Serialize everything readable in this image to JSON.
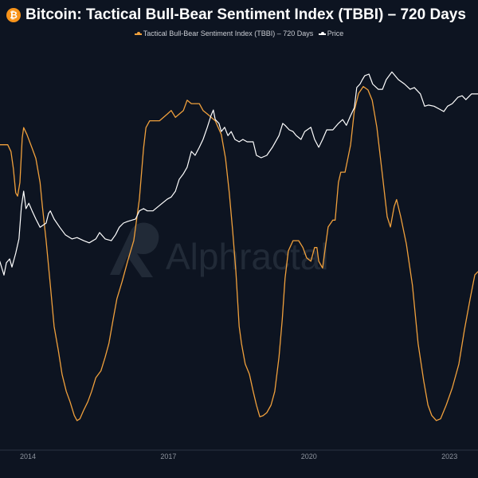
{
  "title": "Bitcoin: Tactical Bull-Bear Sentiment Index (TBBI) – 720 Days",
  "watermark": "Alphractal",
  "colors": {
    "background": "#0d1421",
    "tbbi": "#f0a03c",
    "price": "#ffffff",
    "brand": "#f7931a"
  },
  "chart_data": {
    "type": "line",
    "title": "Bitcoin: Tactical Bull-Bear Sentiment Index (TBBI) – 720 Days",
    "legend": "top-center",
    "grid": false,
    "x_ticks": [
      "2014",
      "2017",
      "2020",
      "2023"
    ],
    "xlim": [
      2013.4,
      2023.61
    ],
    "series": [
      {
        "name": "Tactical Bull-Bear Sentiment Index (TBBI) – 720 Days",
        "axis": "left (unlabeled, relative 0-100)",
        "color": "#f0a03c",
        "points": [
          [
            2013.4,
            81
          ],
          [
            2013.57,
            81
          ],
          [
            2013.64,
            79
          ],
          [
            2013.69,
            74
          ],
          [
            2013.74,
            67
          ],
          [
            2013.78,
            66
          ],
          [
            2013.83,
            70
          ],
          [
            2013.88,
            83
          ],
          [
            2013.91,
            86
          ],
          [
            2013.98,
            84
          ],
          [
            2014.09,
            80
          ],
          [
            2014.17,
            77
          ],
          [
            2014.26,
            70
          ],
          [
            2014.31,
            63
          ],
          [
            2014.39,
            53
          ],
          [
            2014.48,
            40
          ],
          [
            2014.56,
            28
          ],
          [
            2014.65,
            21
          ],
          [
            2014.73,
            14
          ],
          [
            2014.82,
            9
          ],
          [
            2014.9,
            6
          ],
          [
            2014.99,
            2
          ],
          [
            2015.05,
            0.5
          ],
          [
            2015.11,
            1
          ],
          [
            2015.19,
            3.5
          ],
          [
            2015.28,
            6
          ],
          [
            2015.36,
            9
          ],
          [
            2015.45,
            13
          ],
          [
            2015.56,
            15
          ],
          [
            2015.65,
            19
          ],
          [
            2015.73,
            23
          ],
          [
            2015.82,
            30
          ],
          [
            2015.9,
            36
          ],
          [
            2016.01,
            41
          ],
          [
            2016.13,
            47
          ],
          [
            2016.26,
            53
          ],
          [
            2016.38,
            65
          ],
          [
            2016.47,
            80
          ],
          [
            2016.52,
            86
          ],
          [
            2016.6,
            88
          ],
          [
            2016.81,
            88
          ],
          [
            2016.98,
            90
          ],
          [
            2017.06,
            91
          ],
          [
            2017.15,
            89
          ],
          [
            2017.32,
            91
          ],
          [
            2017.4,
            94
          ],
          [
            2017.49,
            93
          ],
          [
            2017.66,
            93
          ],
          [
            2017.74,
            91
          ],
          [
            2017.83,
            90
          ],
          [
            2018.0,
            88
          ],
          [
            2018.13,
            84
          ],
          [
            2018.22,
            77
          ],
          [
            2018.3,
            67
          ],
          [
            2018.37,
            56
          ],
          [
            2018.44,
            44
          ],
          [
            2018.51,
            28
          ],
          [
            2018.56,
            23
          ],
          [
            2018.64,
            17
          ],
          [
            2018.73,
            14
          ],
          [
            2018.81,
            9
          ],
          [
            2018.88,
            5
          ],
          [
            2018.95,
            1.6
          ],
          [
            2019.02,
            1.9
          ],
          [
            2019.1,
            2.8
          ],
          [
            2019.19,
            5
          ],
          [
            2019.27,
            9
          ],
          [
            2019.36,
            19
          ],
          [
            2019.43,
            30
          ],
          [
            2019.49,
            42
          ],
          [
            2019.56,
            50
          ],
          [
            2019.66,
            53
          ],
          [
            2019.78,
            53
          ],
          [
            2019.87,
            51
          ],
          [
            2019.95,
            48
          ],
          [
            2020.04,
            47
          ],
          [
            2020.12,
            51
          ],
          [
            2020.17,
            51
          ],
          [
            2020.21,
            47
          ],
          [
            2020.29,
            45
          ],
          [
            2020.33,
            49
          ],
          [
            2020.41,
            57
          ],
          [
            2020.51,
            59
          ],
          [
            2020.56,
            59
          ],
          [
            2020.63,
            70
          ],
          [
            2020.68,
            73
          ],
          [
            2020.77,
            73
          ],
          [
            2020.89,
            81
          ],
          [
            2020.97,
            91
          ],
          [
            2021.06,
            96
          ],
          [
            2021.11,
            97
          ],
          [
            2021.16,
            98
          ],
          [
            2021.26,
            97
          ],
          [
            2021.35,
            94
          ],
          [
            2021.45,
            86
          ],
          [
            2021.57,
            72
          ],
          [
            2021.67,
            60
          ],
          [
            2021.74,
            57
          ],
          [
            2021.82,
            63
          ],
          [
            2021.87,
            65
          ],
          [
            2021.96,
            60
          ],
          [
            2022.08,
            52
          ],
          [
            2022.21,
            40
          ],
          [
            2022.33,
            23
          ],
          [
            2022.45,
            12
          ],
          [
            2022.54,
            5
          ],
          [
            2022.62,
            2
          ],
          [
            2022.72,
            0.5
          ],
          [
            2022.81,
            1
          ],
          [
            2022.93,
            5
          ],
          [
            2023.06,
            10
          ],
          [
            2023.2,
            17
          ],
          [
            2023.32,
            27
          ],
          [
            2023.44,
            36
          ],
          [
            2023.54,
            43
          ],
          [
            2023.61,
            44
          ]
        ]
      },
      {
        "name": "Price",
        "axis": "right (unlabeled, log USD)",
        "scale": "log",
        "color": "#ffffff",
        "points": [
          [
            2013.4,
            85
          ],
          [
            2013.49,
            52
          ],
          [
            2013.54,
            80
          ],
          [
            2013.61,
            92
          ],
          [
            2013.66,
            69
          ],
          [
            2013.74,
            112
          ],
          [
            2013.81,
            186
          ],
          [
            2013.86,
            570
          ],
          [
            2013.91,
            1000
          ],
          [
            2013.96,
            540
          ],
          [
            2014.02,
            655
          ],
          [
            2014.09,
            500
          ],
          [
            2014.17,
            375
          ],
          [
            2014.26,
            280
          ],
          [
            2014.39,
            325
          ],
          [
            2014.44,
            455
          ],
          [
            2014.48,
            500
          ],
          [
            2014.56,
            375
          ],
          [
            2014.68,
            280
          ],
          [
            2014.8,
            215
          ],
          [
            2014.94,
            186
          ],
          [
            2015.05,
            195
          ],
          [
            2015.19,
            175
          ],
          [
            2015.31,
            162
          ],
          [
            2015.45,
            186
          ],
          [
            2015.53,
            233
          ],
          [
            2015.65,
            186
          ],
          [
            2015.78,
            175
          ],
          [
            2015.87,
            215
          ],
          [
            2015.95,
            280
          ],
          [
            2016.04,
            325
          ],
          [
            2016.13,
            345
          ],
          [
            2016.3,
            375
          ],
          [
            2016.38,
            500
          ],
          [
            2016.47,
            540
          ],
          [
            2016.55,
            500
          ],
          [
            2016.67,
            500
          ],
          [
            2016.81,
            605
          ],
          [
            2016.98,
            760
          ],
          [
            2017.06,
            815
          ],
          [
            2017.15,
            1000
          ],
          [
            2017.23,
            1515
          ],
          [
            2017.32,
            1850
          ],
          [
            2017.4,
            2330
          ],
          [
            2017.49,
            4070
          ],
          [
            2017.57,
            3540
          ],
          [
            2017.66,
            4700
          ],
          [
            2017.74,
            6200
          ],
          [
            2017.83,
            9500
          ],
          [
            2017.91,
            14400
          ],
          [
            2017.96,
            17500
          ],
          [
            2018.0,
            12500
          ],
          [
            2018.08,
            10900
          ],
          [
            2018.13,
            8200
          ],
          [
            2018.2,
            9500
          ],
          [
            2018.27,
            7100
          ],
          [
            2018.34,
            8200
          ],
          [
            2018.42,
            6200
          ],
          [
            2018.51,
            5700
          ],
          [
            2018.59,
            6200
          ],
          [
            2018.68,
            5700
          ],
          [
            2018.81,
            5700
          ],
          [
            2018.88,
            3540
          ],
          [
            2018.98,
            3250
          ],
          [
            2019.1,
            3540
          ],
          [
            2019.22,
            4700
          ],
          [
            2019.36,
            7100
          ],
          [
            2019.44,
            10900
          ],
          [
            2019.49,
            10200
          ],
          [
            2019.58,
            8700
          ],
          [
            2019.66,
            8200
          ],
          [
            2019.73,
            7100
          ],
          [
            2019.83,
            6200
          ],
          [
            2019.91,
            8200
          ],
          [
            2020.04,
            9500
          ],
          [
            2020.12,
            6200
          ],
          [
            2020.21,
            4700
          ],
          [
            2020.29,
            6200
          ],
          [
            2020.38,
            8700
          ],
          [
            2020.51,
            8700
          ],
          [
            2020.63,
            10900
          ],
          [
            2020.72,
            12500
          ],
          [
            2020.8,
            10200
          ],
          [
            2020.89,
            14400
          ],
          [
            2020.97,
            19000
          ],
          [
            2021.02,
            38600
          ],
          [
            2021.09,
            43700
          ],
          [
            2021.14,
            51000
          ],
          [
            2021.19,
            58500
          ],
          [
            2021.28,
            62000
          ],
          [
            2021.36,
            43700
          ],
          [
            2021.48,
            36300
          ],
          [
            2021.57,
            36300
          ],
          [
            2021.65,
            51000
          ],
          [
            2021.77,
            67000
          ],
          [
            2021.91,
            51000
          ],
          [
            2022.04,
            43700
          ],
          [
            2022.16,
            36300
          ],
          [
            2022.25,
            38600
          ],
          [
            2022.38,
            30800
          ],
          [
            2022.47,
            20000
          ],
          [
            2022.55,
            20800
          ],
          [
            2022.67,
            20000
          ],
          [
            2022.79,
            18000
          ],
          [
            2022.88,
            16600
          ],
          [
            2022.96,
            20000
          ],
          [
            2023.06,
            21900
          ],
          [
            2023.18,
            27400
          ],
          [
            2023.27,
            28900
          ],
          [
            2023.35,
            25200
          ],
          [
            2023.47,
            30800
          ],
          [
            2023.61,
            30800
          ]
        ]
      }
    ]
  }
}
